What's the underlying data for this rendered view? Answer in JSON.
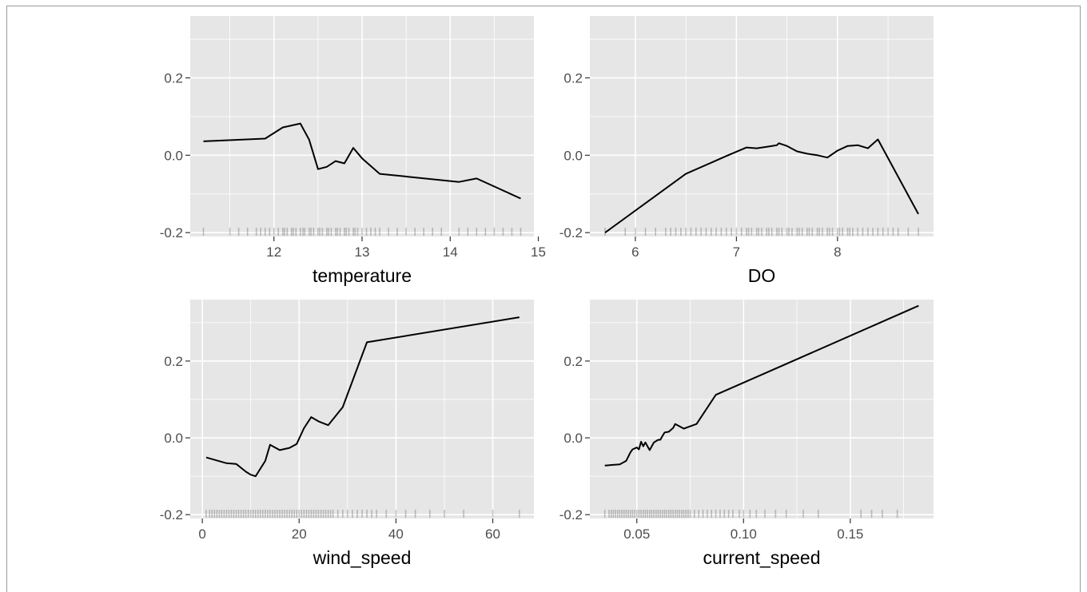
{
  "chart_data": [
    {
      "type": "line",
      "xlabel": "temperature",
      "ylabel": "",
      "xlim": [
        11.05,
        14.95
      ],
      "ylim": [
        -0.21,
        0.36
      ],
      "x_ticks": [
        12,
        13,
        14,
        15
      ],
      "x_tick_labels": [
        "12",
        "13",
        "14",
        "15"
      ],
      "y_ticks": [
        -0.2,
        0.0,
        0.2
      ],
      "y_tick_labels": [
        "-0.2",
        "0.0",
        "0.2"
      ],
      "grid": true,
      "series": [
        {
          "x": [
            11.2,
            11.9,
            12.1,
            12.3,
            12.4,
            12.5,
            12.6,
            12.7,
            12.8,
            12.9,
            13.0,
            13.2,
            14.1,
            14.3,
            14.8
          ],
          "y": [
            0.036,
            0.043,
            0.072,
            0.082,
            0.04,
            -0.036,
            -0.03,
            -0.015,
            -0.021,
            0.019,
            -0.008,
            -0.048,
            -0.069,
            -0.06,
            -0.112
          ]
        }
      ],
      "rug": [
        11.2,
        11.5,
        11.6,
        11.7,
        11.8,
        11.85,
        11.9,
        11.95,
        12.0,
        12.05,
        12.1,
        12.12,
        12.15,
        12.2,
        12.22,
        12.25,
        12.3,
        12.33,
        12.35,
        12.4,
        12.42,
        12.45,
        12.5,
        12.52,
        12.55,
        12.6,
        12.62,
        12.65,
        12.7,
        12.72,
        12.75,
        12.8,
        12.82,
        12.85,
        12.9,
        12.92,
        12.95,
        13.0,
        13.05,
        13.1,
        13.15,
        13.2,
        13.3,
        13.4,
        13.5,
        13.6,
        13.7,
        13.8,
        13.9,
        14.1,
        14.2,
        14.3,
        14.4,
        14.5,
        14.6,
        14.7,
        14.8
      ]
    },
    {
      "type": "line",
      "xlabel": "DO",
      "ylabel": "",
      "xlim": [
        5.55,
        8.95
      ],
      "ylim": [
        -0.21,
        0.36
      ],
      "x_ticks": [
        6,
        7,
        8
      ],
      "x_tick_labels": [
        "6",
        "7",
        "8"
      ],
      "y_ticks": [
        -0.2,
        0.0,
        0.2
      ],
      "y_tick_labels": [
        "-0.2",
        "0.0",
        "0.2"
      ],
      "grid": true,
      "series": [
        {
          "x": [
            5.7,
            6.5,
            6.9,
            7.1,
            7.2,
            7.3,
            7.4,
            7.42,
            7.5,
            7.6,
            7.7,
            7.8,
            7.9,
            8.0,
            8.1,
            8.2,
            8.3,
            8.4,
            8.8
          ],
          "y": [
            -0.2,
            -0.048,
            -0.002,
            0.02,
            0.018,
            0.022,
            0.026,
            0.031,
            0.024,
            0.01,
            0.004,
            0.0,
            -0.006,
            0.012,
            0.024,
            0.026,
            0.018,
            0.041,
            -0.152
          ]
        }
      ],
      "rug": [
        5.7,
        5.9,
        6.0,
        6.1,
        6.2,
        6.3,
        6.35,
        6.4,
        6.45,
        6.5,
        6.55,
        6.6,
        6.65,
        6.7,
        6.75,
        6.8,
        6.85,
        6.9,
        6.95,
        7.0,
        7.05,
        7.1,
        7.12,
        7.15,
        7.2,
        7.22,
        7.25,
        7.3,
        7.32,
        7.35,
        7.4,
        7.42,
        7.45,
        7.5,
        7.52,
        7.55,
        7.6,
        7.62,
        7.65,
        7.7,
        7.72,
        7.75,
        7.8,
        7.82,
        7.85,
        7.9,
        7.92,
        7.95,
        8.0,
        8.02,
        8.05,
        8.1,
        8.12,
        8.15,
        8.2,
        8.25,
        8.3,
        8.35,
        8.4,
        8.45,
        8.5,
        8.55,
        8.6,
        8.7,
        8.8
      ]
    },
    {
      "type": "line",
      "xlabel": "wind_speed",
      "ylabel": "",
      "xlim": [
        -2.5,
        68.5
      ],
      "ylim": [
        -0.21,
        0.36
      ],
      "x_ticks": [
        0,
        20,
        40,
        60
      ],
      "x_tick_labels": [
        "0",
        "20",
        "40",
        "60"
      ],
      "y_ticks": [
        -0.2,
        0.0,
        0.2
      ],
      "y_tick_labels": [
        "-0.2",
        "0.0",
        "0.2"
      ],
      "grid": true,
      "series": [
        {
          "x": [
            0.8,
            5,
            7,
            9,
            10,
            11,
            13,
            14,
            16,
            18,
            19.5,
            21,
            22.5,
            24,
            26,
            29,
            34,
            65.5
          ],
          "y": [
            -0.051,
            -0.066,
            -0.068,
            -0.088,
            -0.096,
            -0.1,
            -0.06,
            -0.018,
            -0.032,
            -0.026,
            -0.016,
            0.025,
            0.054,
            0.043,
            0.033,
            0.08,
            0.249,
            0.314
          ]
        }
      ],
      "rug": [
        0.8,
        1.5,
        2,
        2.5,
        3,
        3.5,
        4,
        4.5,
        5,
        5.5,
        6,
        6.5,
        7,
        7.5,
        8,
        8.5,
        9,
        9.5,
        10,
        10.5,
        11,
        11.5,
        12,
        12.5,
        13,
        13.5,
        14,
        14.5,
        15,
        15.5,
        16,
        16.5,
        17,
        17.5,
        18,
        18.5,
        19,
        19.5,
        20,
        20.5,
        21,
        21.5,
        22,
        22.5,
        23,
        23.5,
        24,
        24.5,
        25,
        25.5,
        26,
        26.5,
        27,
        28,
        29,
        30,
        31,
        32,
        33,
        34,
        35,
        36,
        38,
        40,
        42,
        44,
        47,
        50,
        54,
        60,
        65.5
      ]
    },
    {
      "type": "line",
      "xlabel": "current_speed",
      "ylabel": "",
      "xlim": [
        0.028,
        0.189
      ],
      "ylim": [
        -0.21,
        0.36
      ],
      "x_ticks": [
        0.05,
        0.1,
        0.15
      ],
      "x_tick_labels": [
        "0.05",
        "0.10",
        "0.15"
      ],
      "y_ticks": [
        -0.2,
        0.0,
        0.2
      ],
      "y_tick_labels": [
        "-0.2",
        "0.0",
        "0.2"
      ],
      "grid": true,
      "series": [
        {
          "x": [
            0.035,
            0.042,
            0.045,
            0.047,
            0.048,
            0.05,
            0.051,
            0.052,
            0.053,
            0.054,
            0.056,
            0.058,
            0.06,
            0.061,
            0.063,
            0.065,
            0.067,
            0.068,
            0.07,
            0.072,
            0.074,
            0.078,
            0.087,
            0.182
          ],
          "y": [
            -0.072,
            -0.069,
            -0.06,
            -0.038,
            -0.03,
            -0.025,
            -0.03,
            -0.01,
            -0.022,
            -0.012,
            -0.032,
            -0.012,
            -0.005,
            -0.005,
            0.014,
            0.016,
            0.026,
            0.036,
            0.03,
            0.024,
            0.028,
            0.036,
            0.112,
            0.344
          ]
        }
      ],
      "rug": [
        0.035,
        0.037,
        0.038,
        0.039,
        0.04,
        0.041,
        0.042,
        0.043,
        0.044,
        0.045,
        0.046,
        0.047,
        0.048,
        0.049,
        0.05,
        0.051,
        0.052,
        0.053,
        0.054,
        0.055,
        0.056,
        0.057,
        0.058,
        0.059,
        0.06,
        0.061,
        0.062,
        0.063,
        0.064,
        0.065,
        0.066,
        0.067,
        0.068,
        0.069,
        0.07,
        0.071,
        0.072,
        0.073,
        0.074,
        0.075,
        0.077,
        0.079,
        0.081,
        0.083,
        0.085,
        0.087,
        0.089,
        0.091,
        0.093,
        0.095,
        0.098,
        0.1,
        0.103,
        0.106,
        0.11,
        0.115,
        0.12,
        0.128,
        0.135,
        0.155,
        0.16,
        0.165,
        0.172
      ]
    }
  ]
}
